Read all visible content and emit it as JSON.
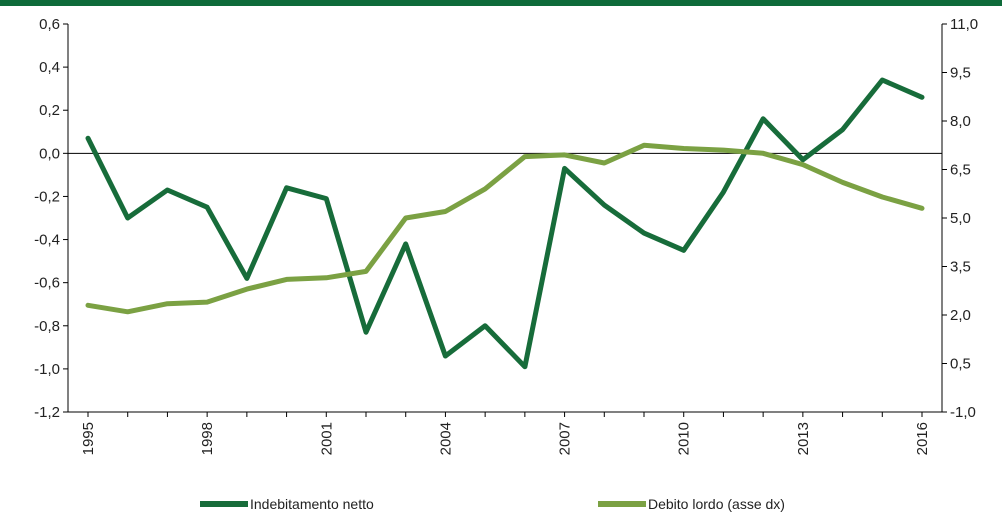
{
  "colors": {
    "top_bar": "#0e6b3a",
    "series_1": "#176c3a",
    "series_2": "#7ba143",
    "axis": "#000000",
    "text": "#222222"
  },
  "chart_data": {
    "type": "line",
    "x": [
      1995,
      1996,
      1997,
      1998,
      1999,
      2000,
      2001,
      2002,
      2003,
      2004,
      2005,
      2006,
      2007,
      2008,
      2009,
      2010,
      2011,
      2012,
      2013,
      2014,
      2015,
      2016
    ],
    "x_tick_labels": [
      "1995",
      "1998",
      "2001",
      "2004",
      "2007",
      "2010",
      "2013",
      "2016"
    ],
    "y_left": {
      "range": [
        -1.2,
        0.6
      ],
      "ticks": [
        0.6,
        0.4,
        0.2,
        0.0,
        -0.2,
        -0.4,
        -0.6,
        -0.8,
        -1.0,
        -1.2
      ],
      "tick_labels": [
        "0,6",
        "0,4",
        "0,2",
        "0,0",
        "-0,2",
        "-0,4",
        "-0,6",
        "-0,8",
        "-1,0",
        "-1,2"
      ]
    },
    "y_right": {
      "range": [
        -1.0,
        11.0
      ],
      "ticks": [
        11.0,
        9.5,
        8.0,
        6.5,
        5.0,
        3.5,
        2.0,
        0.5,
        -1.0
      ],
      "tick_labels": [
        "11,0",
        "9,5",
        "8,0",
        "6,5",
        "5,0",
        "3,5",
        "2,0",
        "0,5",
        "-1,0"
      ]
    },
    "series": [
      {
        "name": "Indebitamento netto",
        "axis": "left",
        "values": [
          0.07,
          -0.3,
          -0.17,
          -0.25,
          -0.58,
          -0.16,
          -0.21,
          -0.83,
          -0.42,
          -0.94,
          -0.8,
          -0.99,
          -0.07,
          -0.24,
          -0.37,
          -0.45,
          -0.18,
          0.16,
          -0.03,
          0.11,
          0.34,
          0.26
        ]
      },
      {
        "name": "Debito lordo (asse dx)",
        "axis": "right",
        "values": [
          2.3,
          2.1,
          2.35,
          2.4,
          2.8,
          3.1,
          3.15,
          3.35,
          5.0,
          5.2,
          5.9,
          6.9,
          6.95,
          6.7,
          7.25,
          7.15,
          7.1,
          7.0,
          6.65,
          6.1,
          5.65,
          5.3
        ]
      }
    ],
    "legend_placement": "bottom",
    "grid": false
  }
}
